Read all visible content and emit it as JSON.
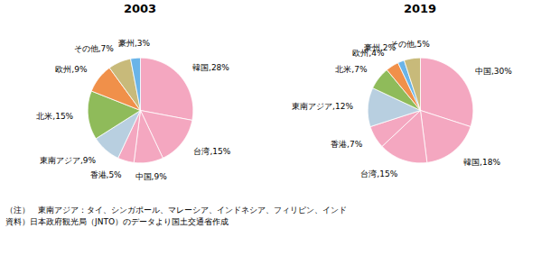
{
  "chart_data": [
    {
      "type": "pie",
      "title": "2003",
      "categories": [
        "韓国",
        "台湾",
        "中国",
        "香港",
        "東南アジア",
        "北米",
        "欧州",
        "その他",
        "豪州"
      ],
      "values": [
        28,
        15,
        9,
        5,
        9,
        15,
        9,
        7,
        3
      ],
      "value_labels": [
        "韓国,28%",
        "台湾,15%",
        "中国,9%",
        "香港,5%",
        "東南アジア,9%",
        "北米,15%",
        "欧州,9%",
        "その他,7%",
        "豪州,3%"
      ],
      "colors": [
        "#f4a7c0",
        "#f4a7c0",
        "#f4a7c0",
        "#f4a7c0",
        "#b8cfe0",
        "#8fbb5a",
        "#f0904a",
        "#c8ba7a",
        "#6ab4e8"
      ],
      "data_labels": true
    },
    {
      "type": "pie",
      "title": "2019",
      "categories": [
        "中国",
        "韓国",
        "台湾",
        "香港",
        "東南アジア",
        "北米",
        "欧州",
        "豪州",
        "その他"
      ],
      "values": [
        30,
        18,
        15,
        7,
        12,
        7,
        4,
        2,
        5
      ],
      "value_labels": [
        "中国,30%",
        "韓国,18%",
        "台湾,15%",
        "香港,7%",
        "東南アジア,12%",
        "北米,7%",
        "欧州,4%",
        "豪州,2%",
        "その他,5%"
      ],
      "colors": [
        "#f4a7c0",
        "#f4a7c0",
        "#f4a7c0",
        "#f4a7c0",
        "#b8cfe0",
        "#8fbb5a",
        "#f0904a",
        "#6ab4e8",
        "#c8ba7a"
      ],
      "data_labels": true
    }
  ],
  "annotations": [
    "（注）　東南アジア：タイ、シンガポール、マレーシア、インドネシア、フィリピン、インド",
    "資料）日本政府観光局（JNTO）のデータより国土交通省作成"
  ]
}
